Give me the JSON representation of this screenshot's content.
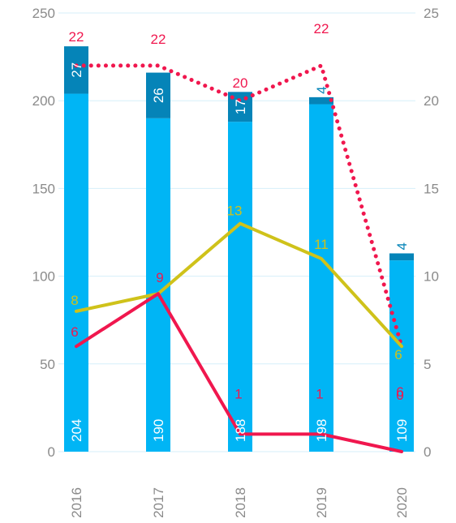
{
  "chart_data": {
    "type": "bar",
    "categories": [
      "2016",
      "2017",
      "2018",
      "2019",
      "2020"
    ],
    "y_left": {
      "lim": [
        0,
        250
      ],
      "ticks": [
        "0",
        "50",
        "100",
        "150",
        "200",
        "250"
      ]
    },
    "y_right": {
      "lim": [
        0,
        25
      ],
      "ticks": [
        "0",
        "5",
        "10",
        "15",
        "20",
        "25"
      ]
    },
    "grid": true,
    "bar_series": [
      {
        "axis": "left",
        "values": [
          204,
          190,
          188,
          198,
          109
        ],
        "labels": [
          "204",
          "190",
          "188",
          "198",
          "109"
        ],
        "color": "#00b5f5"
      },
      {
        "axis": "left",
        "values": [
          27,
          26,
          17,
          4,
          4
        ],
        "labels": [
          "27",
          "26",
          "17",
          "4",
          "4"
        ],
        "color": "#0584b8"
      }
    ],
    "line_series": [
      {
        "axis": "right",
        "style": "dotted",
        "values": [
          22,
          22,
          20,
          22,
          6
        ],
        "labels": [
          "22",
          "22",
          "20",
          "22",
          "6"
        ],
        "color": "#f0174e"
      },
      {
        "axis": "right",
        "style": "solid",
        "values": [
          8,
          9,
          13,
          11,
          6
        ],
        "labels": [
          "8",
          "",
          "13",
          "11",
          "6"
        ],
        "color": "#cfc21a"
      },
      {
        "axis": "right",
        "style": "solid",
        "values": [
          6,
          9,
          1,
          1,
          0
        ],
        "labels": [
          "6",
          "9",
          "1",
          "1",
          "0"
        ],
        "color": "#f0174e"
      }
    ]
  }
}
